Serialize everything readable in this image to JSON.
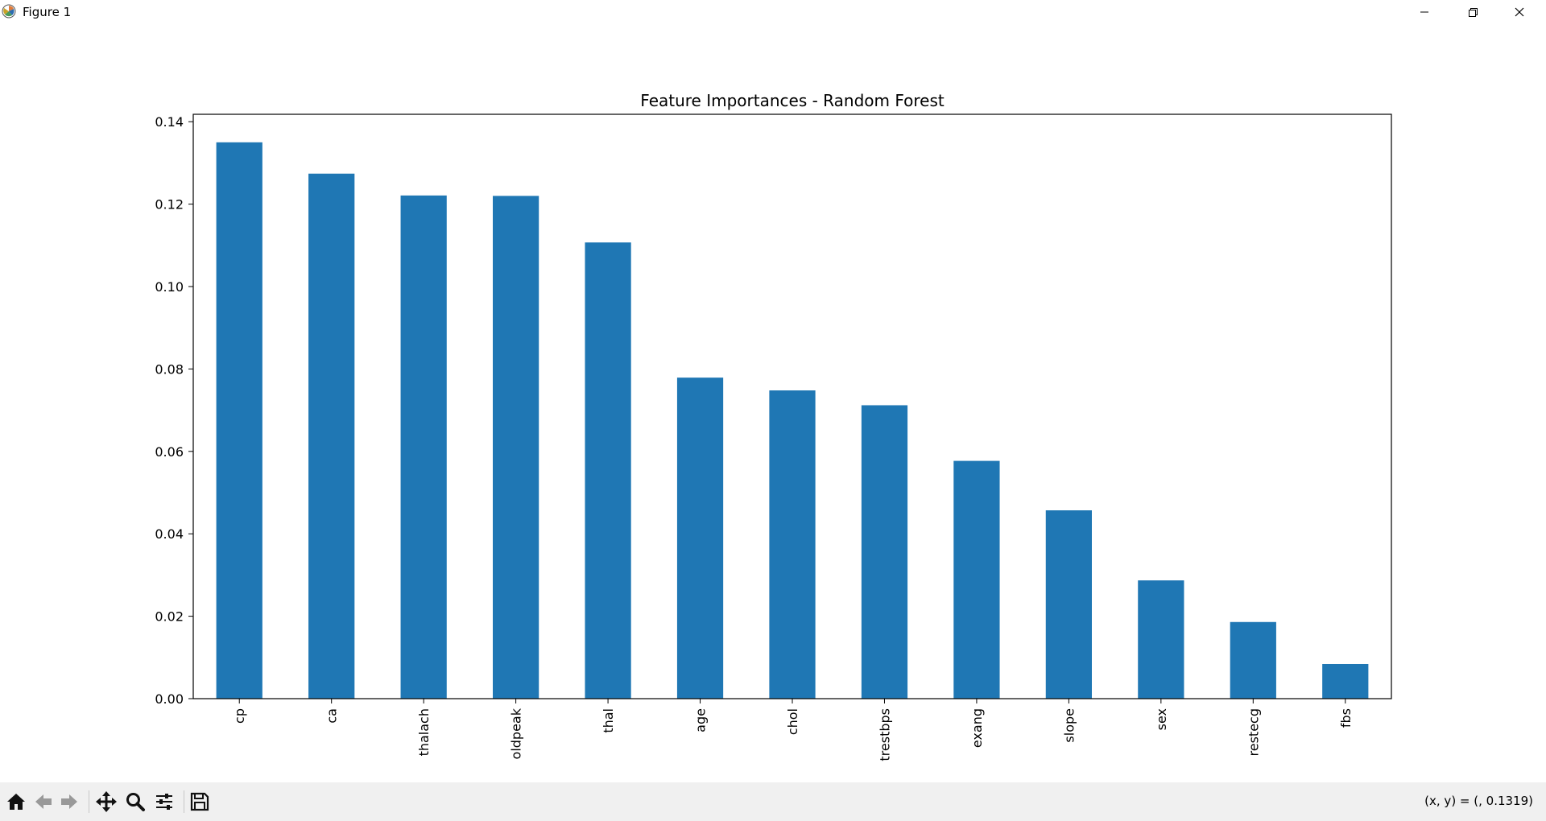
{
  "window": {
    "title": "Figure 1",
    "controls": [
      "minimize-icon",
      "restore-icon",
      "close-icon"
    ]
  },
  "toolbar": {
    "buttons": [
      "home-icon",
      "back-icon",
      "forward-icon",
      "pan-icon",
      "zoom-icon",
      "configure-subplots-icon",
      "save-icon"
    ],
    "coordinates": "(x, y) = (, 0.1319)"
  },
  "chart_data": {
    "type": "bar",
    "title": "Feature Importances - Random Forest",
    "xlabel": "",
    "ylabel": "",
    "categories": [
      "cp",
      "ca",
      "thalach",
      "oldpeak",
      "thal",
      "age",
      "chol",
      "trestbps",
      "exang",
      "slope",
      "sex",
      "restecg",
      "fbs"
    ],
    "values": [
      0.135,
      0.1274,
      0.1221,
      0.122,
      0.1107,
      0.0779,
      0.0748,
      0.0712,
      0.0577,
      0.0457,
      0.0287,
      0.0186,
      0.0084
    ],
    "ylim": [
      0,
      0.1418
    ],
    "yticks": [
      "0.00",
      "0.02",
      "0.04",
      "0.06",
      "0.08",
      "0.10",
      "0.12",
      "0.14"
    ],
    "bar_color": "#1f77b4",
    "grid": false,
    "legend": "none"
  }
}
